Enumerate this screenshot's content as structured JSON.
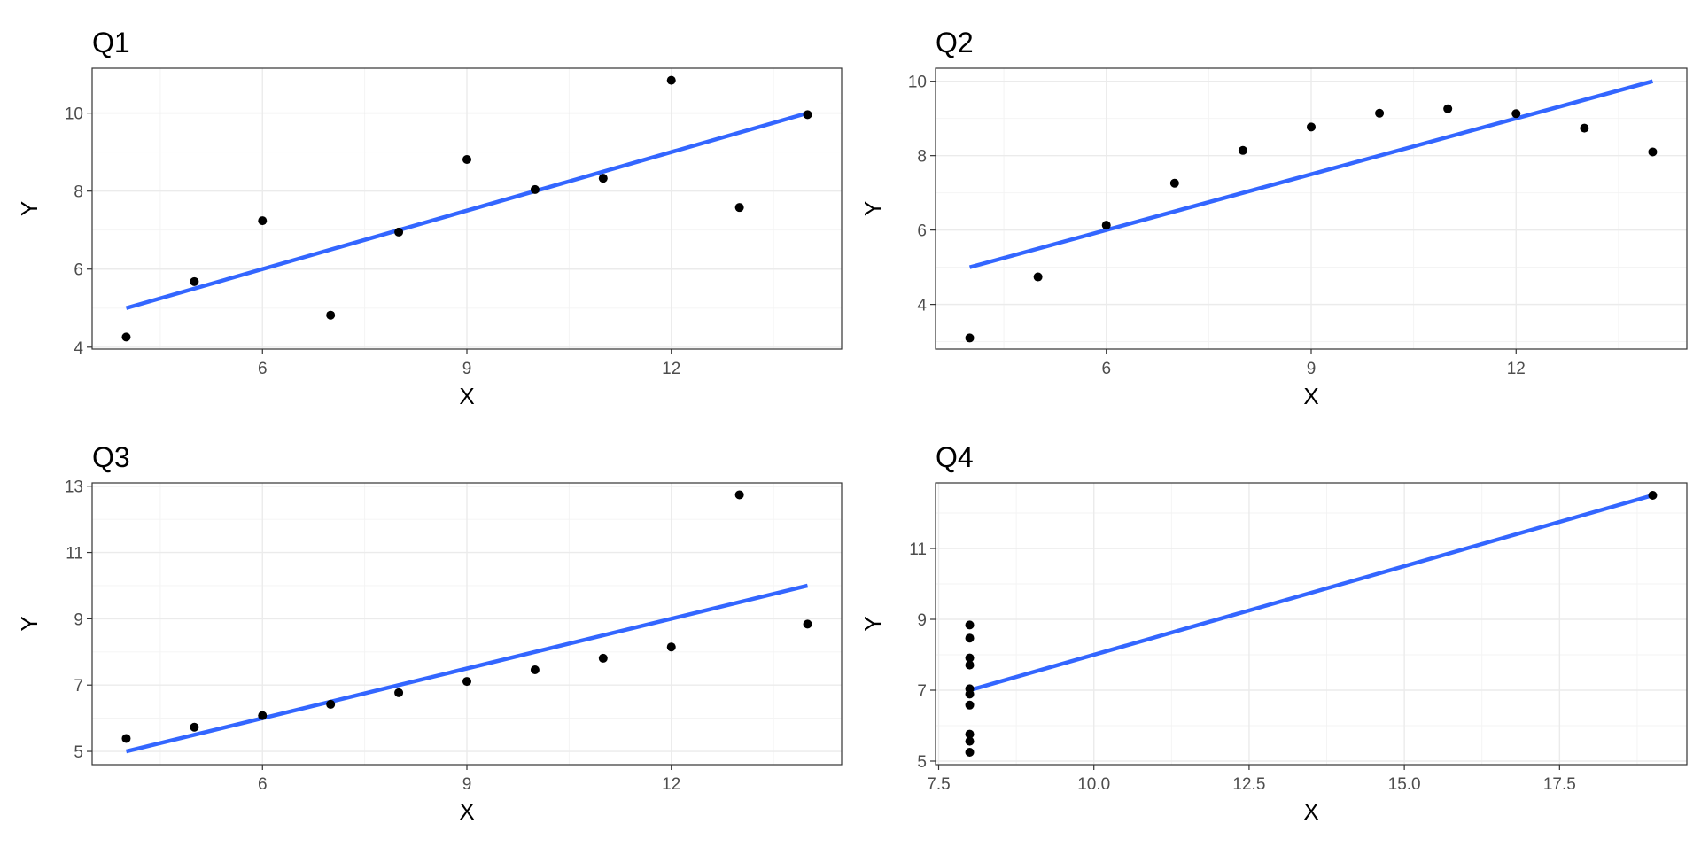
{
  "colors": {
    "fit_line": "#3366ff",
    "points": "#000000",
    "grid": "#ebebeb",
    "tick_text": "#4d4d4d"
  },
  "chart_data": [
    {
      "type": "scatter",
      "title": "Q1",
      "xlabel": "X",
      "ylabel": "Y",
      "xlim": [
        3.5,
        14.5
      ],
      "ylim": [
        3.95,
        11.15
      ],
      "x_ticks": [
        6,
        9,
        12
      ],
      "x_tick_labels": [
        "6",
        "9",
        "12"
      ],
      "y_ticks": [
        4,
        6,
        8,
        10
      ],
      "y_tick_labels": [
        "4",
        "6",
        "8",
        "10"
      ],
      "grid": true,
      "points": [
        [
          10,
          8.04
        ],
        [
          8,
          6.95
        ],
        [
          13,
          7.58
        ],
        [
          9,
          8.81
        ],
        [
          11,
          8.33
        ],
        [
          14,
          9.96
        ],
        [
          6,
          7.24
        ],
        [
          4,
          4.26
        ],
        [
          12,
          10.84
        ],
        [
          7,
          4.82
        ],
        [
          5,
          5.68
        ]
      ],
      "fit_line": [
        [
          4,
          5.0
        ],
        [
          14,
          10.0
        ]
      ]
    },
    {
      "type": "scatter",
      "title": "Q2",
      "xlabel": "X",
      "ylabel": "Y",
      "xlim": [
        3.5,
        14.5
      ],
      "ylim": [
        2.8,
        10.35
      ],
      "x_ticks": [
        6,
        9,
        12
      ],
      "x_tick_labels": [
        "6",
        "9",
        "12"
      ],
      "y_ticks": [
        4,
        6,
        8,
        10
      ],
      "y_tick_labels": [
        "4",
        "6",
        "8",
        "10"
      ],
      "grid": true,
      "points": [
        [
          10,
          9.14
        ],
        [
          8,
          8.14
        ],
        [
          13,
          8.74
        ],
        [
          9,
          8.77
        ],
        [
          11,
          9.26
        ],
        [
          14,
          8.1
        ],
        [
          6,
          6.13
        ],
        [
          4,
          3.1
        ],
        [
          12,
          9.13
        ],
        [
          7,
          7.26
        ],
        [
          5,
          4.74
        ]
      ],
      "fit_line": [
        [
          4,
          5.0
        ],
        [
          14,
          10.0
        ]
      ]
    },
    {
      "type": "scatter",
      "title": "Q3",
      "xlabel": "X",
      "ylabel": "Y",
      "xlim": [
        3.5,
        14.5
      ],
      "ylim": [
        4.6,
        13.1
      ],
      "x_ticks": [
        6,
        9,
        12
      ],
      "x_tick_labels": [
        "6",
        "9",
        "12"
      ],
      "y_ticks": [
        5,
        7,
        9,
        11,
        13
      ],
      "y_tick_labels": [
        "5",
        "7",
        "9",
        "11",
        "13"
      ],
      "grid": true,
      "points": [
        [
          10,
          7.46
        ],
        [
          8,
          6.77
        ],
        [
          13,
          12.74
        ],
        [
          9,
          7.11
        ],
        [
          11,
          7.81
        ],
        [
          14,
          8.84
        ],
        [
          6,
          6.08
        ],
        [
          4,
          5.39
        ],
        [
          12,
          8.15
        ],
        [
          7,
          6.42
        ],
        [
          5,
          5.73
        ]
      ],
      "fit_line": [
        [
          4,
          5.0
        ],
        [
          14,
          10.0
        ]
      ]
    },
    {
      "type": "scatter",
      "title": "Q4",
      "xlabel": "X",
      "ylabel": "Y",
      "xlim": [
        7.45,
        19.55
      ],
      "ylim": [
        4.9,
        12.85
      ],
      "x_ticks": [
        7.5,
        10,
        12.5,
        15,
        17.5
      ],
      "x_tick_labels": [
        "7.5",
        "10.0",
        "12.5",
        "15.0",
        "17.5"
      ],
      "y_ticks": [
        5,
        7,
        9,
        11
      ],
      "y_tick_labels": [
        "5",
        "7",
        "9",
        "11"
      ],
      "grid": true,
      "points": [
        [
          8,
          6.58
        ],
        [
          8,
          5.76
        ],
        [
          8,
          7.71
        ],
        [
          8,
          8.84
        ],
        [
          8,
          8.47
        ],
        [
          8,
          7.04
        ],
        [
          8,
          5.25
        ],
        [
          19,
          12.5
        ],
        [
          8,
          5.56
        ],
        [
          8,
          7.91
        ],
        [
          8,
          6.89
        ]
      ],
      "fit_line": [
        [
          8,
          7.0
        ],
        [
          19,
          12.5
        ]
      ]
    }
  ]
}
